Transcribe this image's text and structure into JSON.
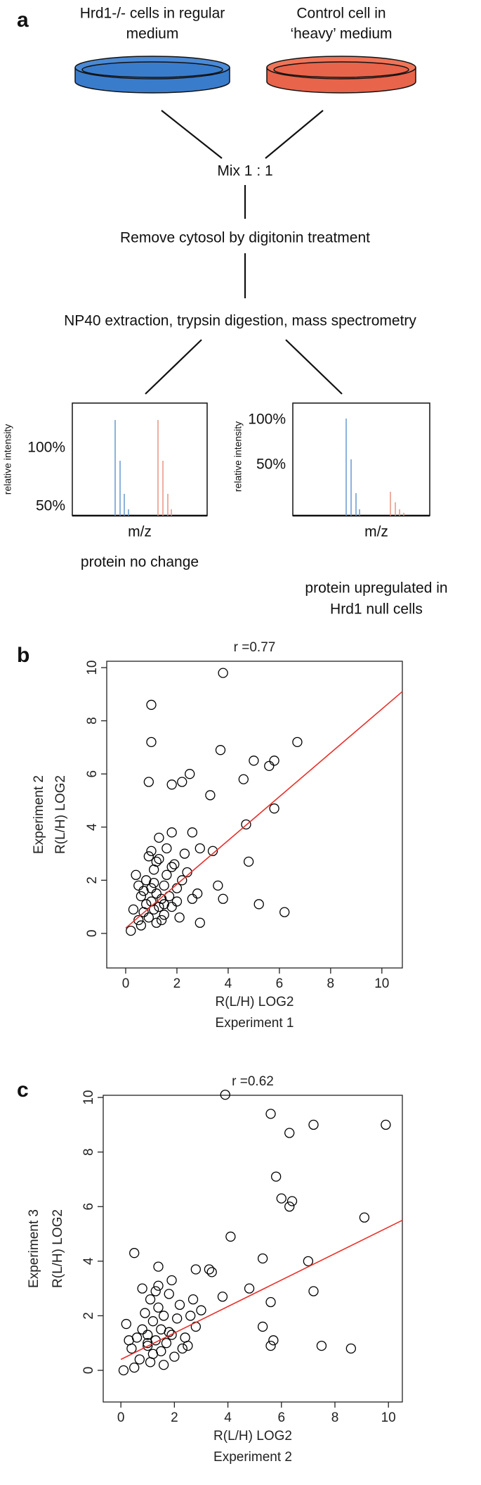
{
  "panel_a": {
    "label": "a",
    "dish_left": [
      "Hrd1-/- cells in regular",
      "medium"
    ],
    "dish_right": [
      "Control cell in",
      "‘heavy’ medium"
    ],
    "mix": "Mix  1 : 1",
    "step1": "Remove cytosol by digitonin treatment",
    "step2": "NP40 extraction, trypsin digestion, mass spectrometry",
    "spectra": [
      {
        "tick_high": "100%",
        "tick_low": "50%",
        "ylabel": "relative intensity",
        "xlabel": "m/z",
        "caption": [
          "protein no change"
        ]
      },
      {
        "tick_high": "100%",
        "tick_low": "50%",
        "ylabel": "relative intensity",
        "xlabel": "m/z",
        "caption": [
          "protein upregulated in",
          "Hrd1 null cells"
        ]
      }
    ]
  },
  "chart_data": [
    {
      "type": "scatter",
      "panel_label": "b",
      "title": "r =0.77",
      "xlabel": [
        "R(L/H) LOG2",
        "Experiment 1"
      ],
      "ylabel": [
        "Experiment 2",
        "R(L/H) LOG2"
      ],
      "xlim": [
        -0.74,
        10.8
      ],
      "ylim": [
        -1.3,
        10.24
      ],
      "xticks": [
        0,
        2,
        4,
        6,
        8,
        10
      ],
      "yticks": [
        0,
        2,
        4,
        6,
        8,
        10
      ],
      "point_color": "#000000",
      "x": [
        3.8,
        1.0,
        1.0,
        3.7,
        6.7,
        5.0,
        5.8,
        5.6,
        0.9,
        1.8,
        2.2,
        2.5,
        4.6,
        3.3,
        5.8,
        4.7,
        4.8,
        5.2,
        6.2,
        3.6,
        3.8,
        2.9,
        2.8,
        3.4,
        2.9,
        2.6,
        1.8,
        1.3,
        0.3,
        0.5,
        0.6,
        0.7,
        0.8,
        0.8,
        0.9,
        1.0,
        1.0,
        1.1,
        1.1,
        1.2,
        1.2,
        1.3,
        1.3,
        1.4,
        1.5,
        1.5,
        1.6,
        1.7,
        1.8,
        1.9,
        2.0,
        2.1,
        2.2,
        2.4,
        2.6,
        0.4,
        0.6,
        0.9,
        1.0,
        1.2,
        1.4,
        1.6,
        1.8,
        2.0,
        0.7,
        1.1,
        1.5,
        2.3,
        0.2,
        0.5
      ],
      "y": [
        9.8,
        8.6,
        7.2,
        6.9,
        7.2,
        6.5,
        6.5,
        6.3,
        5.7,
        5.6,
        5.7,
        6.0,
        5.8,
        5.2,
        4.7,
        4.1,
        2.7,
        1.1,
        0.8,
        1.8,
        1.3,
        0.4,
        1.5,
        3.1,
        3.2,
        3.8,
        3.8,
        3.6,
        0.9,
        0.5,
        1.4,
        0.8,
        1.1,
        2.0,
        0.6,
        1.2,
        1.7,
        0.9,
        2.4,
        1.5,
        0.4,
        1.0,
        2.8,
        1.3,
        1.8,
        0.7,
        2.2,
        1.4,
        1.0,
        2.6,
        1.7,
        0.6,
        2.0,
        2.3,
        1.3,
        2.2,
        0.3,
        2.9,
        3.1,
        2.7,
        0.5,
        3.2,
        2.5,
        1.2,
        1.6,
        1.9,
        1.1,
        3.0,
        0.1,
        1.8
      ],
      "fit": {
        "color": "#e8302a",
        "x": [
          0,
          10.8
        ],
        "y": [
          0.2,
          9.1
        ]
      }
    },
    {
      "type": "scatter",
      "panel_label": "c",
      "title": "r =0.62",
      "xlabel": [
        "R(L/H) LOG2",
        "Experiment 2"
      ],
      "ylabel": [
        "Experiment 3",
        "R(L/H) LOG2"
      ],
      "xlim": [
        -0.66,
        10.52
      ],
      "ylim": [
        -1.16,
        10.08
      ],
      "xticks": [
        0,
        2,
        4,
        6,
        8,
        10
      ],
      "yticks": [
        0,
        2,
        4,
        6,
        8,
        10
      ],
      "point_color": "#000000",
      "x": [
        3.9,
        5.6,
        7.2,
        9.9,
        6.3,
        5.8,
        6.0,
        6.4,
        6.3,
        9.1,
        4.1,
        5.3,
        7.0,
        7.2,
        5.6,
        5.3,
        5.7,
        5.6,
        7.5,
        8.6,
        4.8,
        3.8,
        0.5,
        3.3,
        3.4,
        2.8,
        1.4,
        0.2,
        0.4,
        0.6,
        0.7,
        0.8,
        0.9,
        1.0,
        1.0,
        1.1,
        1.2,
        1.2,
        1.3,
        1.4,
        1.5,
        1.5,
        1.6,
        1.7,
        1.8,
        1.9,
        2.0,
        2.1,
        2.2,
        2.4,
        2.6,
        2.8,
        3.0,
        0.5,
        0.8,
        1.1,
        1.3,
        1.6,
        1.9,
        2.3,
        2.7,
        0.3,
        1.0,
        1.4,
        1.8,
        2.5,
        0.1
      ],
      "y": [
        10.1,
        9.4,
        9.0,
        9.0,
        8.7,
        7.1,
        6.3,
        6.2,
        6.0,
        5.6,
        4.9,
        4.1,
        4.0,
        2.9,
        2.5,
        1.6,
        1.1,
        0.9,
        0.9,
        0.8,
        3.0,
        2.7,
        4.3,
        3.7,
        3.6,
        3.7,
        3.8,
        1.7,
        0.8,
        1.2,
        0.4,
        1.5,
        2.1,
        0.9,
        1.3,
        2.6,
        0.6,
        1.8,
        1.1,
        2.3,
        0.7,
        1.5,
        2.0,
        1.0,
        2.8,
        1.3,
        0.5,
        1.9,
        2.4,
        1.2,
        2.0,
        1.6,
        2.2,
        0.1,
        3.0,
        0.3,
        2.9,
        0.2,
        3.3,
        0.8,
        2.6,
        1.1,
        1.0,
        3.1,
        1.4,
        0.9,
        0.0
      ],
      "fit": {
        "color": "#e8302a",
        "x": [
          0,
          10.52
        ],
        "y": [
          0.4,
          5.5
        ]
      }
    }
  ]
}
